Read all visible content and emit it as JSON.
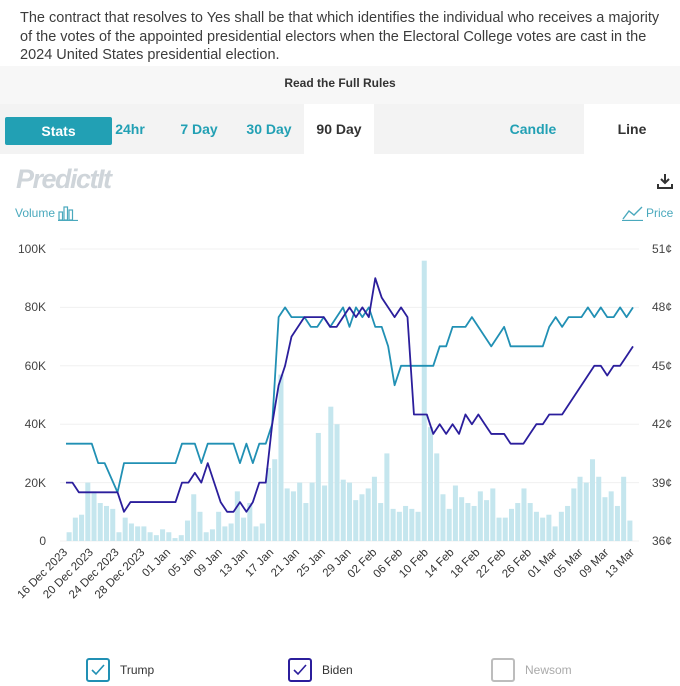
{
  "rules": {
    "text": "The contract that resolves to Yes shall be that which identifies the individual who receives a majority of the votes of the appointed presidential electors when the Electoral College votes are cast in the 2024 United States presidential election.",
    "link_label": "Read the Full Rules"
  },
  "tabs": {
    "stats": "Stats",
    "h24": "24hr",
    "d7": "7 Day",
    "d30": "30 Day",
    "d90": "90 Day",
    "candle": "Candle",
    "line": "Line",
    "active": "90 Day"
  },
  "logo_text": "PredictIt",
  "volume_label": "Volume",
  "price_label": "Price",
  "icons": {
    "download": "download-icon",
    "volume": "bar-chart-icon",
    "price": "line-chart-icon",
    "check": "check-icon"
  },
  "colors": {
    "accent": "#22a0b4",
    "trump": "#2190b4",
    "biden": "#2b1e9c",
    "volume": "#c5e6ee",
    "newsom": "#bdbdbd"
  },
  "legend": [
    {
      "name": "Trump",
      "checked": true
    },
    {
      "name": "Biden",
      "checked": true
    },
    {
      "name": "Newsom",
      "checked": false
    }
  ],
  "chart_data": {
    "type": "line",
    "x_tick_labels": [
      "16 Dec 2023",
      "20 Dec 2023",
      "24 Dec 2023",
      "28 Dec 2023",
      "01 Jan",
      "05 Jan",
      "09 Jan",
      "13 Jan",
      "17 Jan",
      "21 Jan",
      "25 Jan",
      "29 Jan",
      "02 Feb",
      "06 Feb",
      "10 Feb",
      "14 Feb",
      "18 Feb",
      "22 Feb",
      "26 Feb",
      "01 Mar",
      "05 Mar",
      "09 Mar",
      "13 Mar"
    ],
    "y_left": {
      "label": "Volume",
      "ticks": [
        "0",
        "20K",
        "40K",
        "60K",
        "80K",
        "100K"
      ],
      "range": [
        0,
        100000
      ]
    },
    "y_right": {
      "label": "Price",
      "ticks": [
        "36¢",
        "39¢",
        "42¢",
        "45¢",
        "48¢",
        "51¢"
      ],
      "range": [
        36,
        51
      ]
    },
    "x_range": [
      0,
      88
    ],
    "series": [
      {
        "name": "Trump",
        "color": "#2190b4",
        "values": [
          [
            0,
            41
          ],
          [
            4,
            41
          ],
          [
            5,
            40
          ],
          [
            6,
            40
          ],
          [
            8,
            38.5
          ],
          [
            9,
            40
          ],
          [
            17,
            40
          ],
          [
            18,
            41
          ],
          [
            20,
            41
          ],
          [
            21,
            40
          ],
          [
            22,
            41
          ],
          [
            26,
            41
          ],
          [
            27,
            40
          ],
          [
            28,
            41
          ],
          [
            29,
            40
          ],
          [
            30,
            41
          ],
          [
            31,
            41
          ],
          [
            32,
            42
          ],
          [
            33,
            47.5
          ],
          [
            34,
            48
          ],
          [
            35,
            47.5
          ],
          [
            37,
            47.5
          ],
          [
            38,
            47
          ],
          [
            39,
            47
          ],
          [
            40,
            47.5
          ],
          [
            41,
            47
          ],
          [
            42,
            47.5
          ],
          [
            43,
            48
          ],
          [
            44,
            47
          ],
          [
            45,
            48
          ],
          [
            46,
            47.5
          ],
          [
            47,
            48
          ],
          [
            48,
            47
          ],
          [
            49,
            47
          ],
          [
            50,
            46
          ],
          [
            51,
            44
          ],
          [
            52,
            45
          ],
          [
            53,
            45
          ],
          [
            54,
            45
          ],
          [
            55,
            45
          ],
          [
            56,
            45
          ],
          [
            57,
            45
          ],
          [
            58,
            46
          ],
          [
            59,
            46
          ],
          [
            60,
            47
          ],
          [
            61,
            47
          ],
          [
            62,
            47
          ],
          [
            63,
            47.5
          ],
          [
            64,
            47
          ],
          [
            65,
            46.5
          ],
          [
            66,
            46
          ],
          [
            67,
            46.5
          ],
          [
            68,
            47
          ],
          [
            69,
            46
          ],
          [
            70,
            46
          ],
          [
            71,
            46
          ],
          [
            72,
            46
          ],
          [
            73,
            46
          ],
          [
            74,
            46
          ],
          [
            75,
            47
          ],
          [
            76,
            47.5
          ],
          [
            77,
            47
          ],
          [
            78,
            47.5
          ],
          [
            79,
            47.5
          ],
          [
            80,
            47.5
          ],
          [
            81,
            48
          ],
          [
            82,
            47.5
          ],
          [
            83,
            48
          ],
          [
            84,
            47.5
          ],
          [
            85,
            47.5
          ],
          [
            86,
            48
          ],
          [
            87,
            47.5
          ],
          [
            88,
            48
          ]
        ]
      },
      {
        "name": "Biden",
        "color": "#2b1e9c",
        "values": [
          [
            0,
            39
          ],
          [
            1,
            39
          ],
          [
            2,
            38.5
          ],
          [
            8,
            38.5
          ],
          [
            9,
            37.5
          ],
          [
            10,
            38
          ],
          [
            17,
            38
          ],
          [
            18,
            39
          ],
          [
            19,
            39
          ],
          [
            20,
            39.5
          ],
          [
            21,
            39
          ],
          [
            22,
            40
          ],
          [
            23,
            39
          ],
          [
            24,
            38
          ],
          [
            25,
            37.5
          ],
          [
            26,
            37.5
          ],
          [
            27,
            38
          ],
          [
            28,
            37.5
          ],
          [
            29,
            38
          ],
          [
            30,
            39
          ],
          [
            31,
            39
          ],
          [
            32,
            42
          ],
          [
            33,
            44
          ],
          [
            34,
            45
          ],
          [
            35,
            46.5
          ],
          [
            36,
            47
          ],
          [
            37,
            47.5
          ],
          [
            38,
            47.5
          ],
          [
            39,
            47.5
          ],
          [
            40,
            47.5
          ],
          [
            41,
            47
          ],
          [
            42,
            47
          ],
          [
            43,
            47.5
          ],
          [
            44,
            48
          ],
          [
            45,
            47.5
          ],
          [
            46,
            48
          ],
          [
            47,
            47.5
          ],
          [
            48,
            49.5
          ],
          [
            49,
            48.5
          ],
          [
            50,
            48
          ],
          [
            51,
            47.5
          ],
          [
            52,
            48
          ],
          [
            53,
            47.5
          ],
          [
            54,
            42.5
          ],
          [
            55,
            42.5
          ],
          [
            56,
            42.5
          ],
          [
            57,
            41.5
          ],
          [
            58,
            42
          ],
          [
            59,
            41.5
          ],
          [
            60,
            42
          ],
          [
            61,
            41.5
          ],
          [
            62,
            42.5
          ],
          [
            63,
            42
          ],
          [
            64,
            42.5
          ],
          [
            65,
            42
          ],
          [
            66,
            41.5
          ],
          [
            67,
            41.5
          ],
          [
            68,
            41.5
          ],
          [
            69,
            41
          ],
          [
            70,
            41
          ],
          [
            71,
            41
          ],
          [
            72,
            41.5
          ],
          [
            73,
            42
          ],
          [
            74,
            42
          ],
          [
            75,
            42.5
          ],
          [
            76,
            42.5
          ],
          [
            77,
            42.5
          ],
          [
            78,
            43
          ],
          [
            79,
            43.5
          ],
          [
            80,
            44
          ],
          [
            81,
            44.5
          ],
          [
            82,
            45
          ],
          [
            83,
            45
          ],
          [
            84,
            44.5
          ],
          [
            85,
            45
          ],
          [
            86,
            45
          ],
          [
            87,
            45.5
          ],
          [
            88,
            46
          ]
        ]
      }
    ],
    "volume": [
      3000,
      8000,
      9000,
      20000,
      17000,
      13000,
      12000,
      11000,
      3000,
      8000,
      6000,
      5000,
      5000,
      3000,
      2000,
      4000,
      3000,
      1000,
      2000,
      7000,
      16000,
      10000,
      3000,
      4000,
      10000,
      5000,
      6000,
      17000,
      8000,
      13000,
      5000,
      6000,
      25000,
      28000,
      57000,
      18000,
      17000,
      20000,
      13000,
      20000,
      37000,
      19000,
      46000,
      40000,
      21000,
      20000,
      14000,
      16000,
      18000,
      22000,
      13000,
      30000,
      11000,
      10000,
      12000,
      11000,
      10000,
      96000,
      39000,
      30000,
      16000,
      11000,
      19000,
      15000,
      13000,
      12000,
      17000,
      14000,
      18000,
      8000,
      8000,
      11000,
      13000,
      18000,
      13000,
      10000,
      8000,
      9000,
      5000,
      10000,
      12000,
      18000,
      22000,
      20000,
      28000,
      22000,
      15000,
      17000,
      12000,
      22000,
      7000
    ]
  }
}
